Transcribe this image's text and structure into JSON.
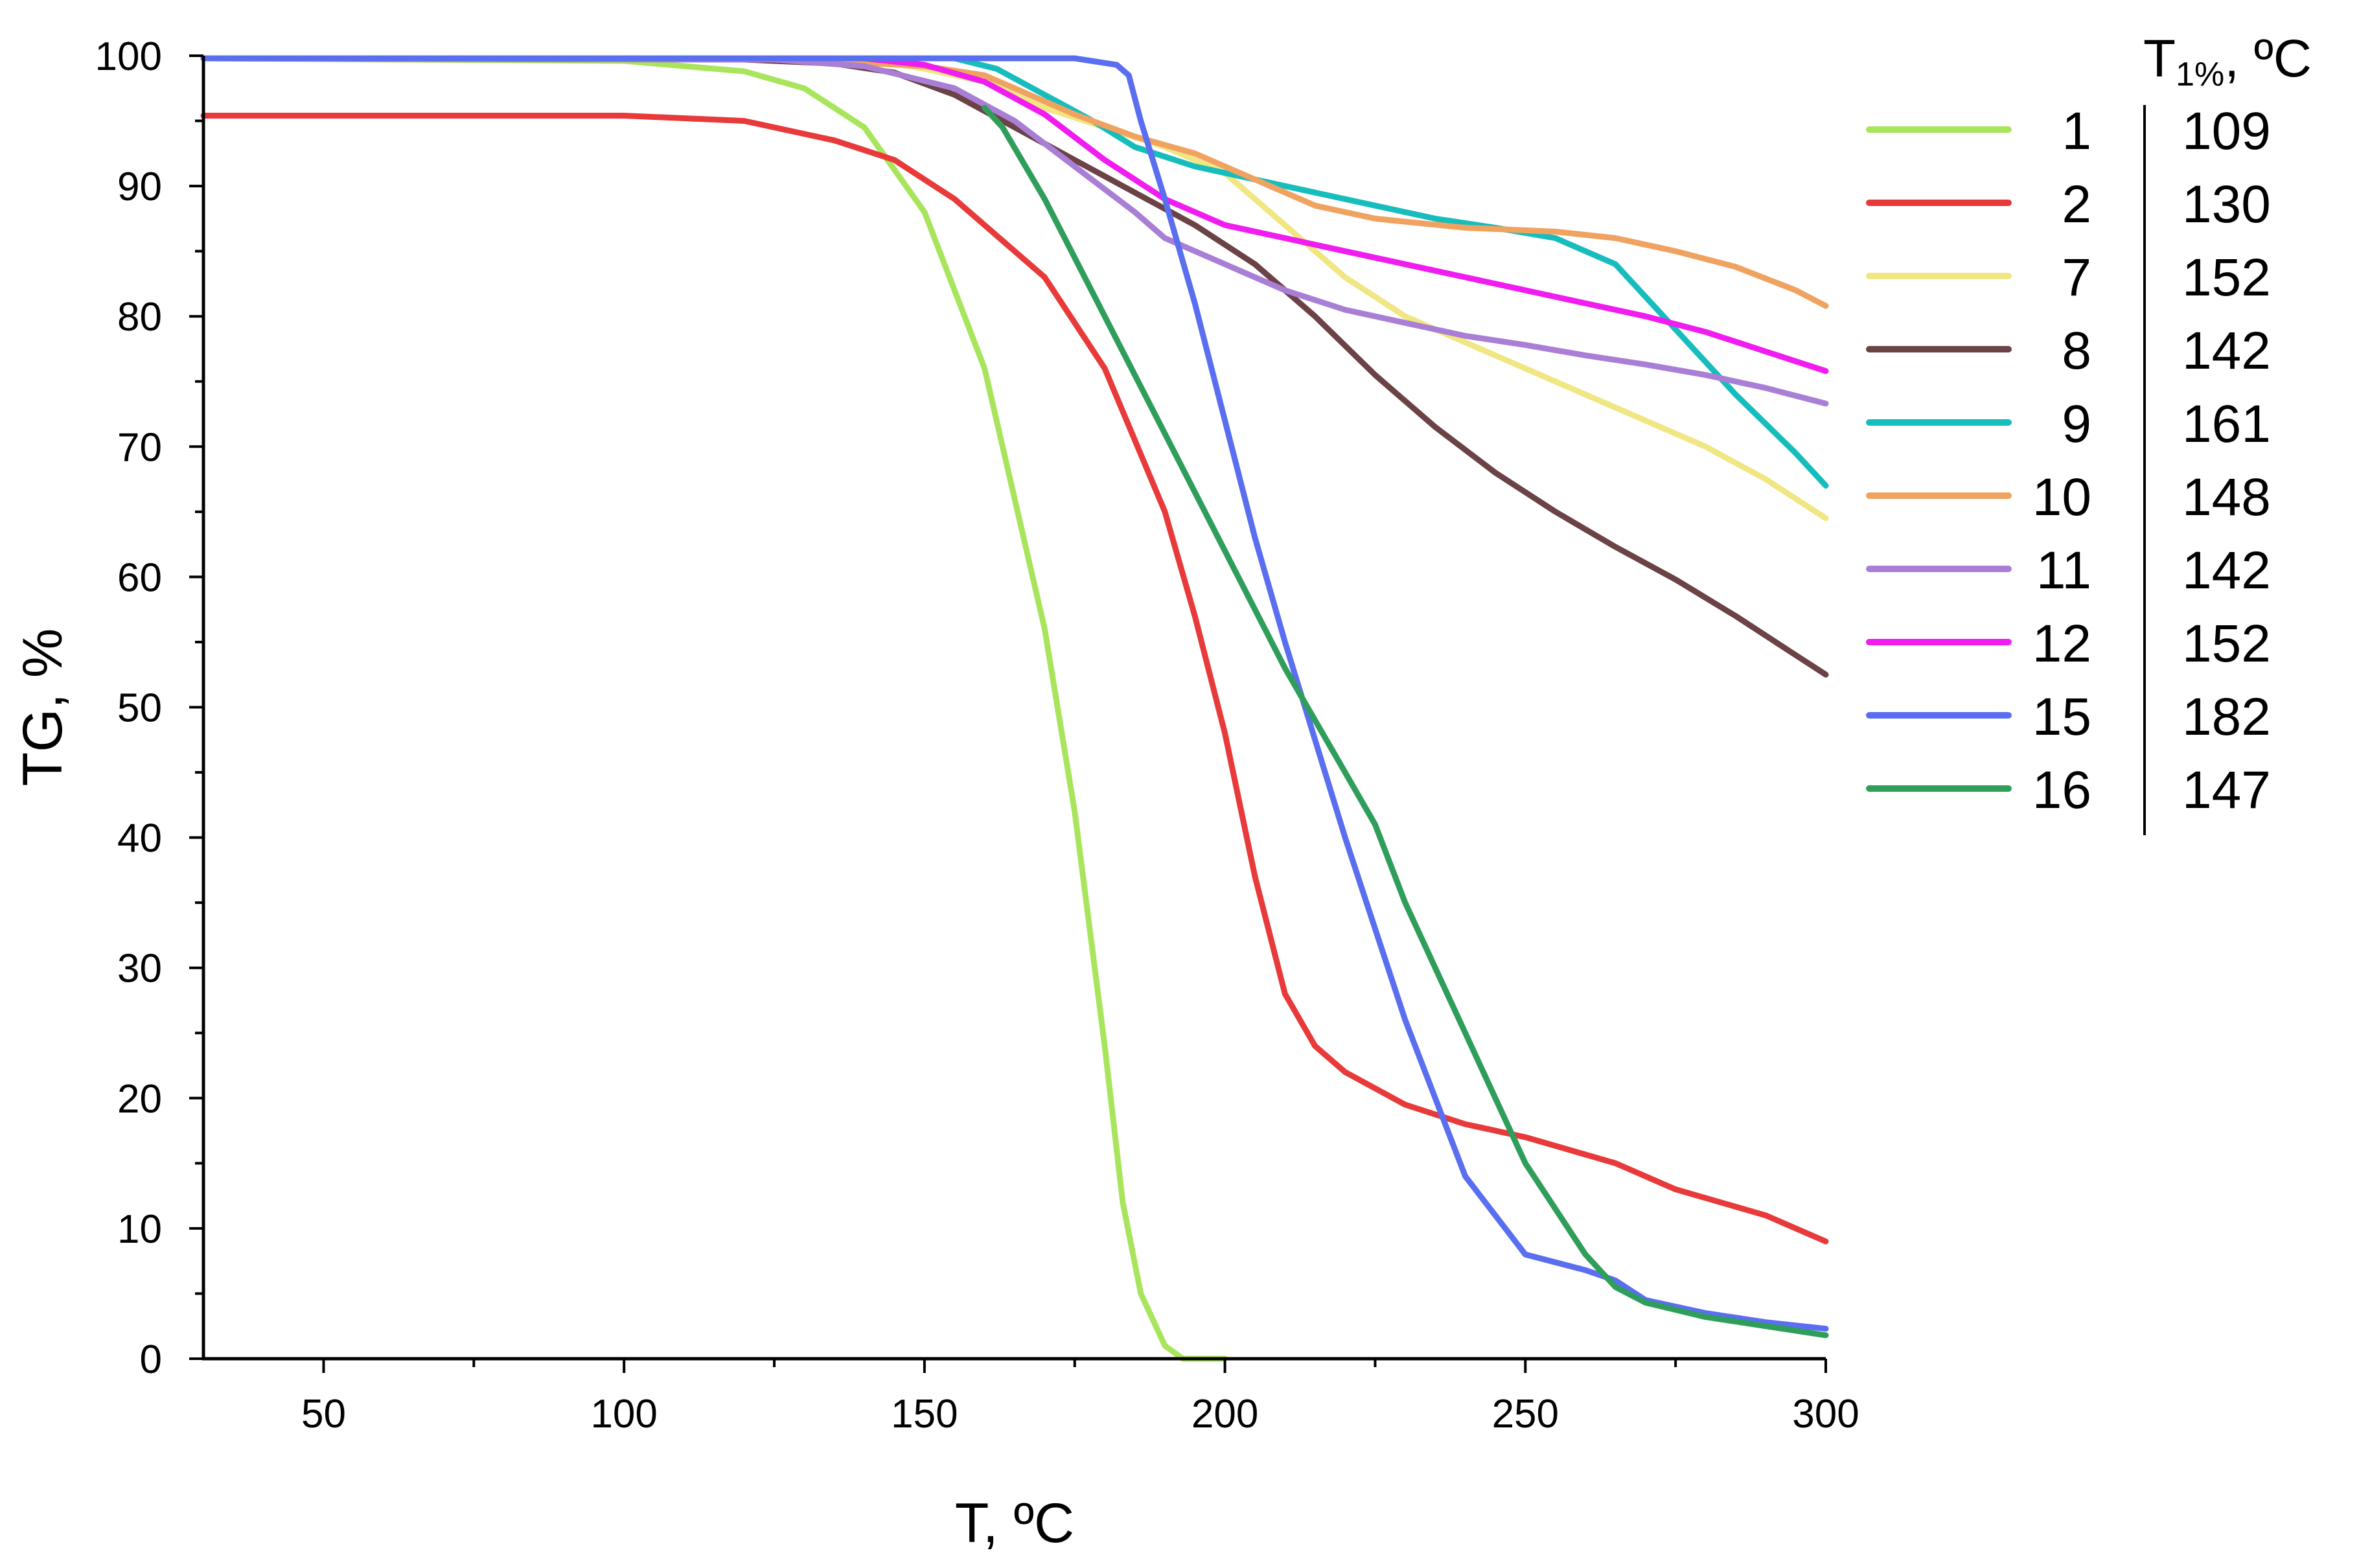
{
  "chart_data": {
    "type": "line",
    "xlabel": "T, ºC",
    "ylabel": "TG, %",
    "xlim": [
      30,
      300
    ],
    "ylim": [
      0,
      100
    ],
    "x_ticks": [
      50,
      100,
      150,
      200,
      250,
      300
    ],
    "y_ticks": [
      0,
      10,
      20,
      30,
      40,
      50,
      60,
      70,
      80,
      90,
      100
    ],
    "grid": false,
    "legend": {
      "placement": "right",
      "t1_header_prefix": "T",
      "t1_header_sub": "1%",
      "t1_header_suffix": ", ºC"
    },
    "series": [
      {
        "name": "1",
        "t1": "109",
        "color": "#a8e55c",
        "points": [
          [
            30,
            99.8
          ],
          [
            100,
            99.6
          ],
          [
            120,
            98.8
          ],
          [
            130,
            97.5
          ],
          [
            140,
            94.5
          ],
          [
            150,
            88
          ],
          [
            160,
            76
          ],
          [
            170,
            56
          ],
          [
            175,
            42
          ],
          [
            180,
            24
          ],
          [
            183,
            12
          ],
          [
            186,
            5
          ],
          [
            190,
            1
          ],
          [
            193,
            0
          ],
          [
            200,
            0
          ]
        ]
      },
      {
        "name": "2",
        "t1": "130",
        "color": "#e83a3a",
        "points": [
          [
            30,
            95.4
          ],
          [
            60,
            95.4
          ],
          [
            100,
            95.4
          ],
          [
            120,
            95
          ],
          [
            135,
            93.5
          ],
          [
            145,
            92
          ],
          [
            155,
            89
          ],
          [
            170,
            83
          ],
          [
            180,
            76
          ],
          [
            190,
            65
          ],
          [
            195,
            57
          ],
          [
            200,
            48
          ],
          [
            205,
            37
          ],
          [
            210,
            28
          ],
          [
            215,
            24
          ],
          [
            220,
            22
          ],
          [
            230,
            19.5
          ],
          [
            240,
            18
          ],
          [
            250,
            17
          ],
          [
            265,
            15
          ],
          [
            275,
            13
          ],
          [
            290,
            11
          ],
          [
            300,
            9
          ]
        ]
      },
      {
        "name": "7",
        "t1": "152",
        "color": "#f0e682",
        "points": [
          [
            30,
            99.8
          ],
          [
            140,
            99.8
          ],
          [
            150,
            99
          ],
          [
            160,
            98
          ],
          [
            170,
            96
          ],
          [
            180,
            94.5
          ],
          [
            190,
            93
          ],
          [
            200,
            91
          ],
          [
            210,
            87
          ],
          [
            220,
            83
          ],
          [
            230,
            80
          ],
          [
            240,
            78
          ],
          [
            250,
            76
          ],
          [
            260,
            74
          ],
          [
            270,
            72
          ],
          [
            280,
            70
          ],
          [
            290,
            67.5
          ],
          [
            300,
            64.5
          ]
        ]
      },
      {
        "name": "8",
        "t1": "142",
        "color": "#6b4246",
        "points": [
          [
            30,
            99.8
          ],
          [
            120,
            99.7
          ],
          [
            135,
            99.4
          ],
          [
            145,
            98.7
          ],
          [
            155,
            97
          ],
          [
            165,
            94.5
          ],
          [
            175,
            92
          ],
          [
            185,
            89.5
          ],
          [
            195,
            87
          ],
          [
            205,
            84
          ],
          [
            215,
            80
          ],
          [
            225,
            75.5
          ],
          [
            235,
            71.5
          ],
          [
            245,
            68
          ],
          [
            255,
            65
          ],
          [
            265,
            62.3
          ],
          [
            275,
            59.8
          ],
          [
            285,
            57
          ],
          [
            295,
            54
          ],
          [
            300,
            52.5
          ]
        ]
      },
      {
        "name": "9",
        "t1": "161",
        "color": "#17bdbd",
        "points": [
          [
            30,
            99.8
          ],
          [
            155,
            99.8
          ],
          [
            162,
            99
          ],
          [
            170,
            97
          ],
          [
            178,
            95
          ],
          [
            185,
            93
          ],
          [
            195,
            91.5
          ],
          [
            205,
            90.5
          ],
          [
            215,
            89.5
          ],
          [
            225,
            88.5
          ],
          [
            235,
            87.5
          ],
          [
            245,
            86.8
          ],
          [
            255,
            86
          ],
          [
            265,
            84
          ],
          [
            275,
            79
          ],
          [
            285,
            74
          ],
          [
            295,
            69.5
          ],
          [
            300,
            67
          ]
        ]
      },
      {
        "name": "10",
        "t1": "148",
        "color": "#f0a260",
        "points": [
          [
            30,
            99.8
          ],
          [
            130,
            99.7
          ],
          [
            150,
            99.2
          ],
          [
            160,
            98.5
          ],
          [
            165,
            97.5
          ],
          [
            175,
            95.5
          ],
          [
            185,
            93.8
          ],
          [
            195,
            92.5
          ],
          [
            205,
            90.5
          ],
          [
            215,
            88.5
          ],
          [
            225,
            87.5
          ],
          [
            240,
            86.8
          ],
          [
            255,
            86.5
          ],
          [
            265,
            86
          ],
          [
            275,
            85
          ],
          [
            285,
            83.8
          ],
          [
            295,
            82
          ],
          [
            300,
            80.8
          ]
        ]
      },
      {
        "name": "11",
        "t1": "142",
        "color": "#a97fd6",
        "points": [
          [
            30,
            99.8
          ],
          [
            125,
            99.7
          ],
          [
            140,
            99.2
          ],
          [
            155,
            97.5
          ],
          [
            165,
            95
          ],
          [
            175,
            91.5
          ],
          [
            185,
            88
          ],
          [
            190,
            86
          ],
          [
            200,
            84
          ],
          [
            210,
            82
          ],
          [
            220,
            80.5
          ],
          [
            230,
            79.5
          ],
          [
            240,
            78.5
          ],
          [
            250,
            77.8
          ],
          [
            260,
            77
          ],
          [
            270,
            76.3
          ],
          [
            280,
            75.5
          ],
          [
            290,
            74.5
          ],
          [
            300,
            73.3
          ]
        ]
      },
      {
        "name": "12",
        "t1": "152",
        "color": "#f01cf0",
        "points": [
          [
            30,
            99.8
          ],
          [
            140,
            99.8
          ],
          [
            150,
            99.3
          ],
          [
            160,
            98
          ],
          [
            170,
            95.5
          ],
          [
            180,
            92
          ],
          [
            190,
            89
          ],
          [
            200,
            87
          ],
          [
            210,
            86
          ],
          [
            220,
            85
          ],
          [
            230,
            84
          ],
          [
            240,
            83
          ],
          [
            250,
            82
          ],
          [
            260,
            81
          ],
          [
            270,
            80
          ],
          [
            280,
            78.8
          ],
          [
            290,
            77.3
          ],
          [
            300,
            75.8
          ]
        ]
      },
      {
        "name": "15",
        "t1": "182",
        "color": "#5a6ef0",
        "points": [
          [
            30,
            99.8
          ],
          [
            175,
            99.8
          ],
          [
            182,
            99.3
          ],
          [
            184,
            98.5
          ],
          [
            186,
            95
          ],
          [
            190,
            89
          ],
          [
            195,
            81
          ],
          [
            200,
            72
          ],
          [
            205,
            63
          ],
          [
            210,
            55
          ],
          [
            215,
            47.5
          ],
          [
            220,
            40
          ],
          [
            225,
            33
          ],
          [
            230,
            26
          ],
          [
            240,
            14
          ],
          [
            250,
            8
          ],
          [
            260,
            6.8
          ],
          [
            265,
            6
          ],
          [
            270,
            4.5
          ],
          [
            280,
            3.5
          ],
          [
            290,
            2.8
          ],
          [
            300,
            2.3
          ]
        ]
      },
      {
        "name": "16",
        "t1": "147",
        "color": "#2f9e5b",
        "points": [
          [
            160,
            96
          ],
          [
            163,
            94.5
          ],
          [
            170,
            89
          ],
          [
            180,
            80
          ],
          [
            190,
            71
          ],
          [
            200,
            62
          ],
          [
            210,
            53
          ],
          [
            220,
            45
          ],
          [
            225,
            41
          ],
          [
            230,
            35
          ],
          [
            240,
            25
          ],
          [
            250,
            15
          ],
          [
            260,
            8
          ],
          [
            265,
            5.5
          ],
          [
            270,
            4.3
          ],
          [
            280,
            3.2
          ],
          [
            290,
            2.5
          ],
          [
            300,
            1.8
          ]
        ]
      }
    ]
  }
}
